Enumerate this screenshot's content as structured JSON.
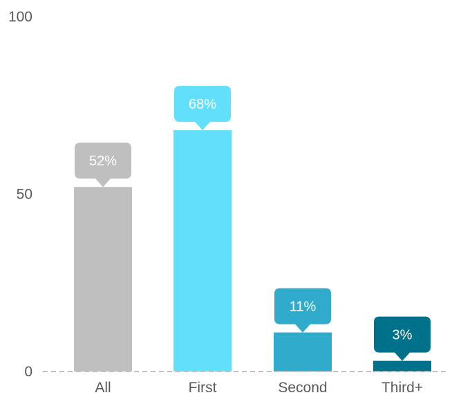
{
  "chart_data": {
    "type": "bar",
    "categories": [
      "All",
      "First",
      "Second",
      "Third+"
    ],
    "values": [
      52,
      68,
      11,
      3
    ],
    "data_labels": [
      "52%",
      "68%",
      "11%",
      "3%"
    ],
    "colors": [
      "#bfbfbf",
      "#62e0fb",
      "#31abcb",
      "#00718a"
    ],
    "yticks": [
      "0",
      "50",
      "100"
    ],
    "ytick_values": [
      0,
      50,
      100
    ],
    "ylim": [
      0,
      100
    ],
    "baseline_color": "#bfbfbf",
    "grid": false,
    "legend": "none"
  }
}
